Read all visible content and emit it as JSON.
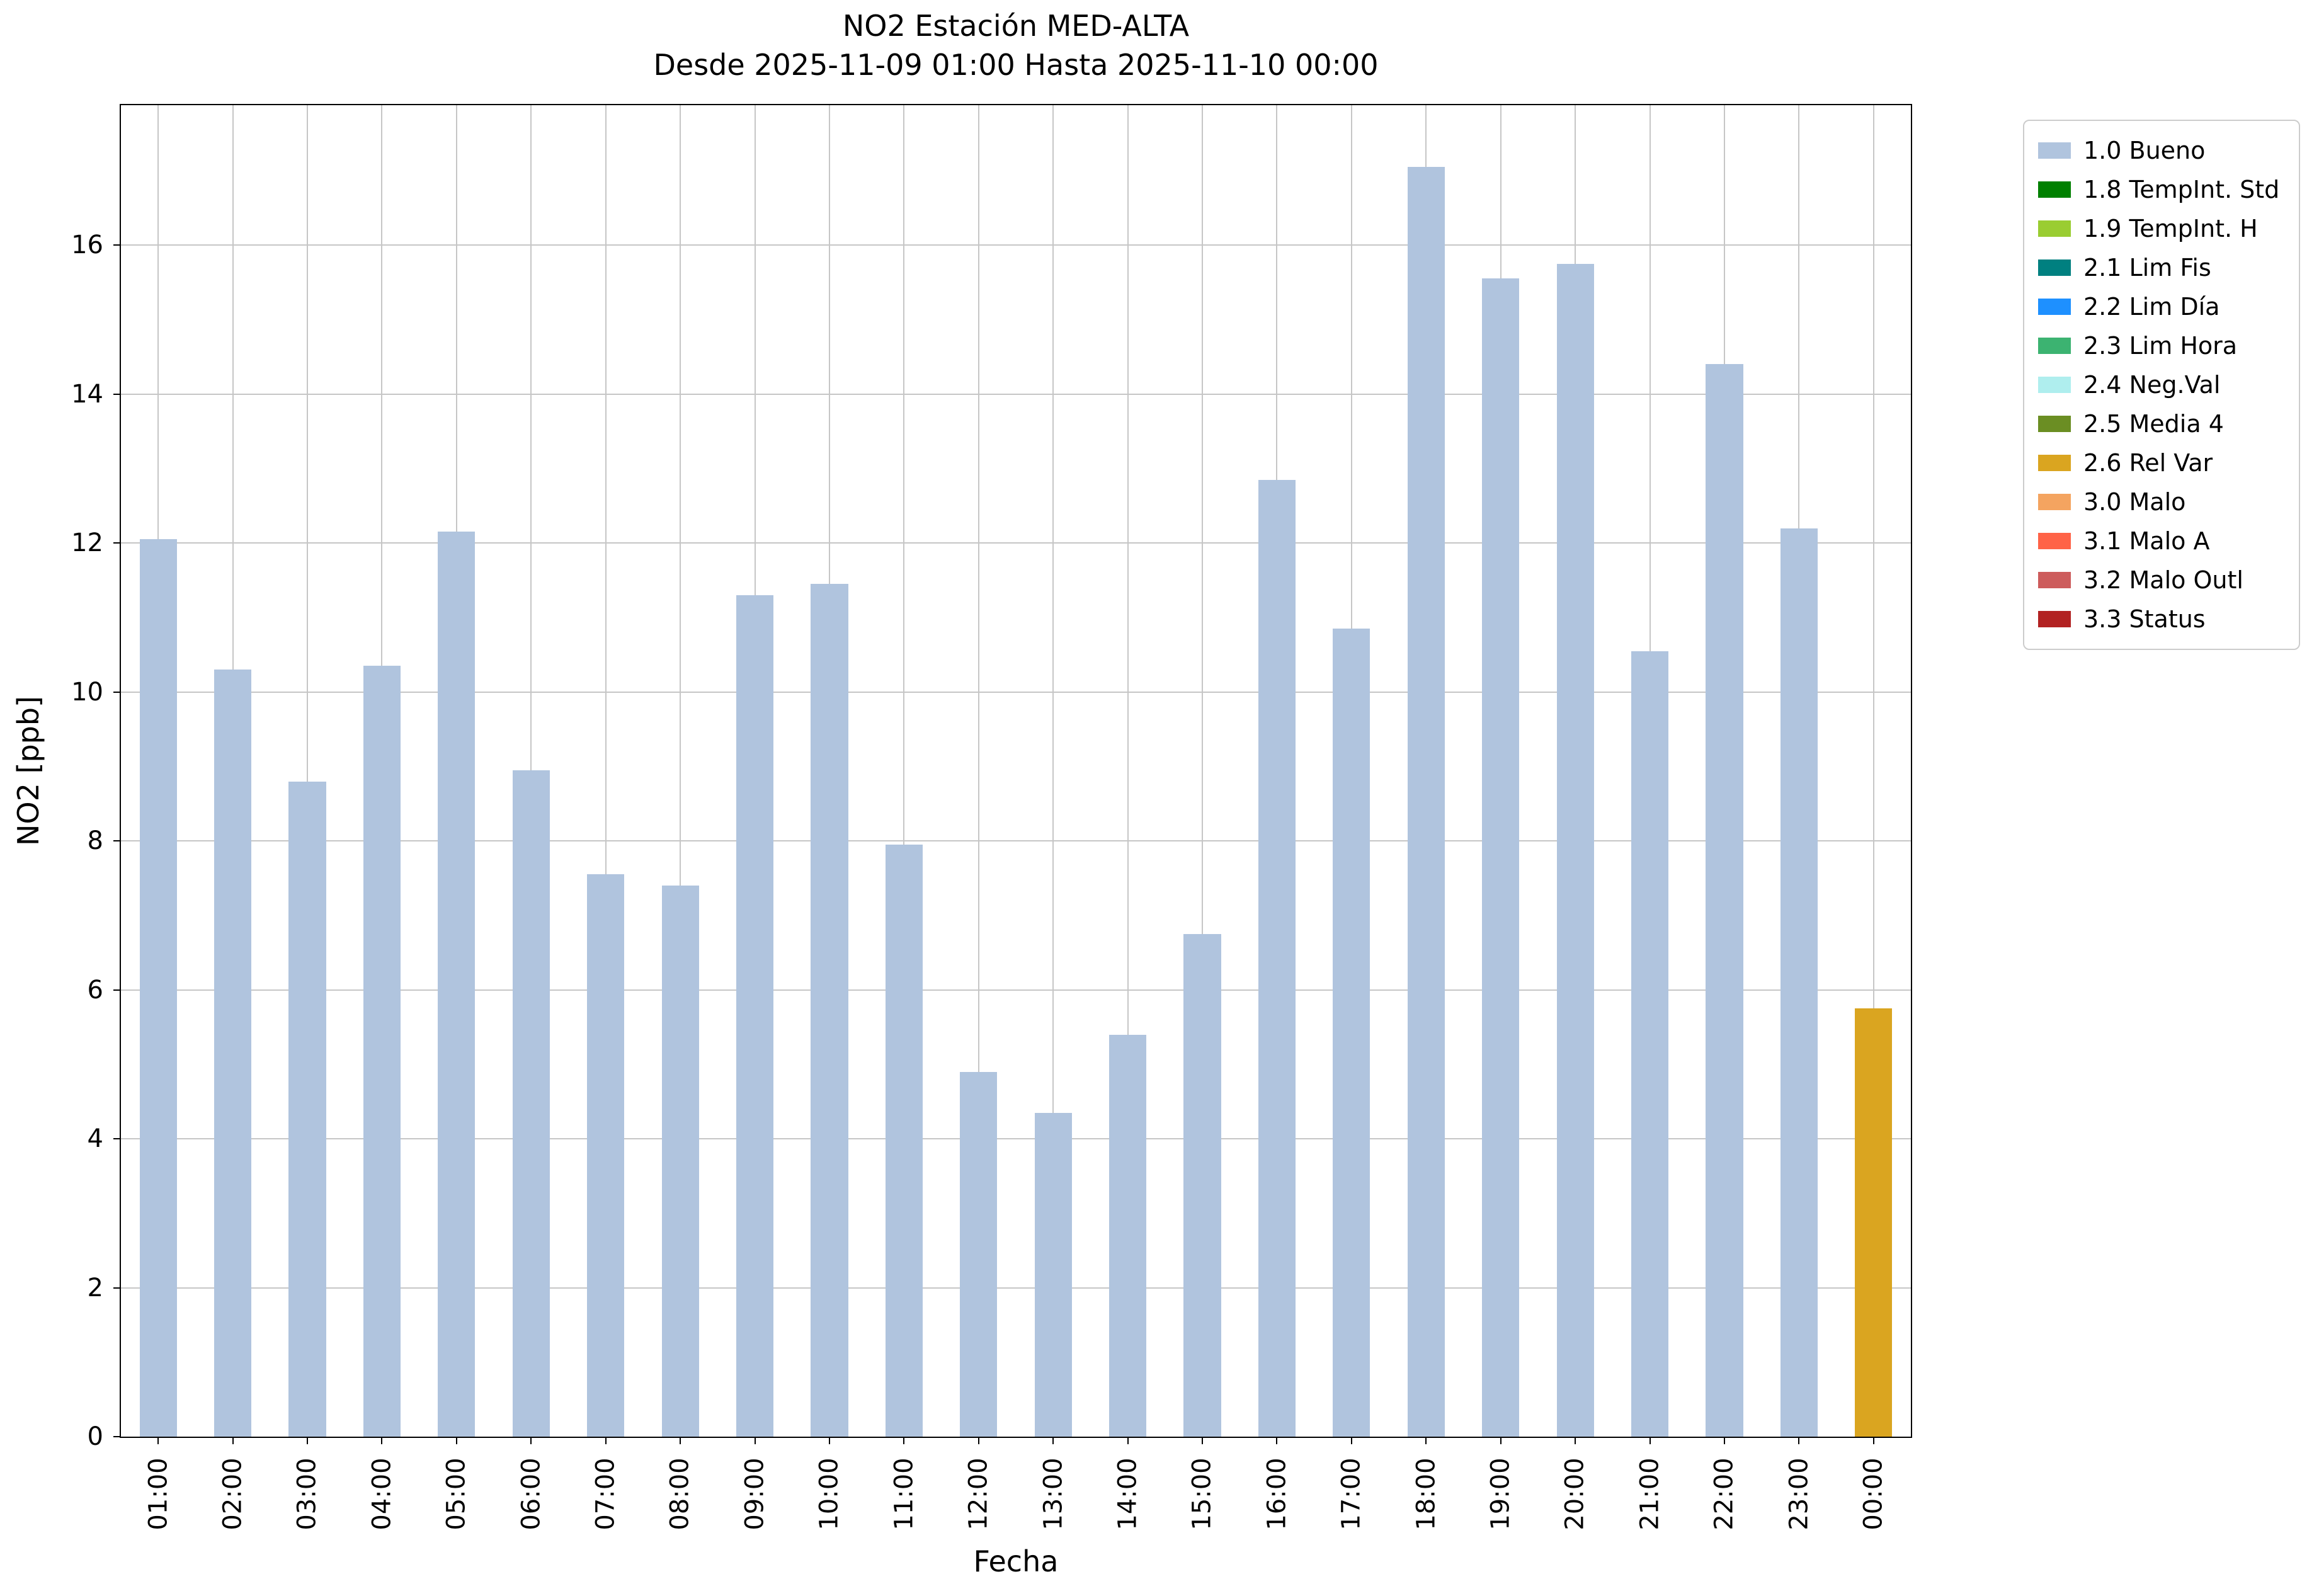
{
  "chart_data": {
    "type": "bar",
    "title": "NO2 Estación MED-ALTA",
    "subtitle": "Desde 2025-11-09 01:00 Hasta 2025-11-10 00:00",
    "xlabel": "Fecha",
    "ylabel": "NO2 [ppb]",
    "ylim": [
      0,
      17.88
    ],
    "yticks": [
      0,
      2,
      4,
      6,
      8,
      10,
      12,
      14,
      16
    ],
    "grid": true,
    "legend_position": "outside-upper-right",
    "bar_width_ratio": 0.5,
    "default_color": "#b0c4de",
    "categories": [
      "01:00",
      "02:00",
      "03:00",
      "04:00",
      "05:00",
      "06:00",
      "07:00",
      "08:00",
      "09:00",
      "10:00",
      "11:00",
      "12:00",
      "13:00",
      "14:00",
      "15:00",
      "16:00",
      "17:00",
      "18:00",
      "19:00",
      "20:00",
      "21:00",
      "22:00",
      "23:00",
      "00:00"
    ],
    "values": [
      12.05,
      10.3,
      8.8,
      10.35,
      12.15,
      8.95,
      7.55,
      7.4,
      11.3,
      11.45,
      7.95,
      4.9,
      4.35,
      5.4,
      6.75,
      12.85,
      10.85,
      17.05,
      15.55,
      15.75,
      10.55,
      14.4,
      12.2,
      5.75
    ],
    "flags": [
      "1.0 Bueno",
      "1.0 Bueno",
      "1.0 Bueno",
      "1.0 Bueno",
      "1.0 Bueno",
      "1.0 Bueno",
      "1.0 Bueno",
      "1.0 Bueno",
      "1.0 Bueno",
      "1.0 Bueno",
      "1.0 Bueno",
      "1.0 Bueno",
      "1.0 Bueno",
      "1.0 Bueno",
      "1.0 Bueno",
      "1.0 Bueno",
      "1.0 Bueno",
      "1.0 Bueno",
      "1.0 Bueno",
      "1.0 Bueno",
      "1.0 Bueno",
      "1.0 Bueno",
      "1.0 Bueno",
      "2.6 Rel Var"
    ],
    "legend": {
      "entries": [
        {
          "label": "1.0 Bueno",
          "color": "#b0c4de"
        },
        {
          "label": "1.8 TempInt. Std",
          "color": "#008000"
        },
        {
          "label": "1.9 TempInt. H",
          "color": "#9acd32"
        },
        {
          "label": "2.1 Lim Fis",
          "color": "#008080"
        },
        {
          "label": "2.2 Lim Día",
          "color": "#1e90ff"
        },
        {
          "label": "2.3 Lim Hora",
          "color": "#3cb371"
        },
        {
          "label": "2.4 Neg.Val",
          "color": "#afeeee"
        },
        {
          "label": "2.5 Media 4",
          "color": "#6b8e23"
        },
        {
          "label": "2.6 Rel Var",
          "color": "#daa520"
        },
        {
          "label": "3.0 Malo",
          "color": "#f4a460"
        },
        {
          "label": "3.1 Malo A",
          "color": "#ff6347"
        },
        {
          "label": "3.2 Malo Outl",
          "color": "#cd5c5c"
        },
        {
          "label": "3.3 Status",
          "color": "#b22222"
        }
      ]
    }
  }
}
